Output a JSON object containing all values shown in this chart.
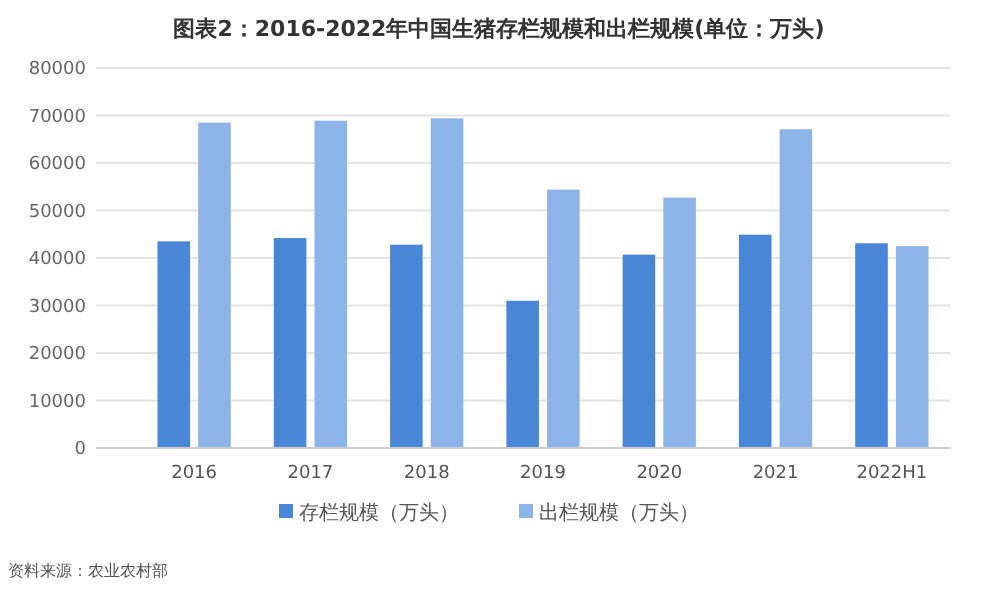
{
  "chart_data": {
    "type": "bar",
    "title": "图表2：2016-2022年中国生猪存栏规模和出栏规模(单位：万头)",
    "categories": [
      "2016",
      "2017",
      "2018",
      "2019",
      "2020",
      "2021",
      "2022H1"
    ],
    "series": [
      {
        "name": "存栏规模（万头）",
        "color": "#4a86d8",
        "values": [
          43500,
          44200,
          42800,
          31000,
          40700,
          44900,
          43100
        ]
      },
      {
        "name": "出栏规模（万头）",
        "color": "#8db4e8",
        "values": [
          68500,
          68900,
          69400,
          54400,
          52700,
          67100,
          42500
        ]
      }
    ],
    "ylim": [
      0,
      80000
    ],
    "yticks": [
      0,
      10000,
      20000,
      30000,
      40000,
      50000,
      60000,
      70000,
      80000
    ],
    "grid": "y",
    "legend": "bottom",
    "annotations": [
      "资料来源：农业农村部"
    ]
  }
}
